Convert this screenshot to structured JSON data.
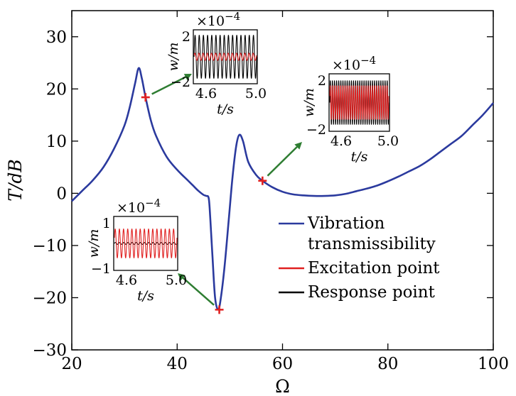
{
  "chart_data": {
    "type": "line",
    "title": "",
    "xlabel": "Ω",
    "ylabel": "T/dB",
    "xlim": [
      20,
      100
    ],
    "ylim": [
      -30,
      35
    ],
    "xticks": [
      20,
      40,
      60,
      80,
      100
    ],
    "yticks": [
      30,
      20,
      10,
      0,
      -10,
      -20,
      -30
    ],
    "xtick_labels": [
      "20",
      "40",
      "60",
      "80",
      "100"
    ],
    "ytick_labels": [
      "30",
      "20",
      "10",
      "0",
      "−10",
      "−20",
      "−30"
    ],
    "grid": false,
    "legend_position": "lower-right",
    "legend": [
      {
        "label_line1": "Vibration",
        "label_line2": "transmissibility",
        "color": "#2b3a9e"
      },
      {
        "label_line1": "Excitation point",
        "label_line2": "",
        "color": "#e02020"
      },
      {
        "label_line1": "Response point",
        "label_line2": "",
        "color": "#000000"
      }
    ],
    "series": [
      {
        "name": "Vibration transmissibility",
        "color": "#2b3a9e",
        "x": [
          20,
          22,
          24,
          26,
          28,
          30,
          31,
          32,
          32.7,
          33.3,
          34,
          35,
          36,
          38,
          40,
          42,
          43,
          44,
          45,
          45.5,
          46,
          46.3,
          46.7,
          47.2,
          47.8,
          48.3,
          49,
          49.8,
          50.5,
          51.2,
          51.8,
          52.5,
          53.5,
          55,
          56.2,
          58,
          60,
          62,
          64,
          66,
          68,
          70,
          72,
          74,
          76,
          78,
          80,
          82,
          84,
          86,
          88,
          90,
          92,
          94,
          96,
          98,
          100
        ],
        "y": [
          -1.5,
          0.5,
          2.5,
          5,
          8.5,
          13,
          16.5,
          21,
          24,
          22,
          18.4,
          14,
          11,
          7,
          4.5,
          2.5,
          1.5,
          0.5,
          -0.3,
          -0.5,
          -1,
          -5,
          -12,
          -20,
          -22.3,
          -20,
          -14,
          -5,
          3,
          9,
          11.2,
          10,
          6,
          3.5,
          2.4,
          1.2,
          0.3,
          -0.2,
          -0.4,
          -0.5,
          -0.5,
          -0.4,
          -0.1,
          0.4,
          0.9,
          1.5,
          2.3,
          3.2,
          4.2,
          5.2,
          6.5,
          8,
          9.5,
          11,
          13,
          15,
          17.3
        ]
      }
    ],
    "markers": [
      {
        "x": 34,
        "y": 18.4
      },
      {
        "x": 48,
        "y": -22.3
      },
      {
        "x": 56.2,
        "y": 2.4
      }
    ],
    "insets": [
      {
        "name": "inset-peak",
        "marker_index": 0,
        "exponent_label": "×10",
        "exponent_power": "−4",
        "ylabel": "w/m",
        "xlabel": "t/s",
        "yticks": [
          "2",
          "−2"
        ],
        "xticks": [
          "4.6",
          "5.0"
        ],
        "y_range": [
          -2,
          2
        ],
        "t_range": [
          4.5,
          5.0
        ],
        "response": {
          "amplitude": 1.8,
          "cycles": 15
        },
        "excitation": {
          "amplitude": 0.3,
          "cycles": 15
        }
      },
      {
        "name": "inset-valley",
        "marker_index": 1,
        "exponent_label": "×10",
        "exponent_power": "−4",
        "ylabel": "w/m",
        "xlabel": "t/s",
        "yticks": [
          "1",
          "−1"
        ],
        "xticks": [
          "4.6",
          "5.0"
        ],
        "y_range": [
          -1,
          1
        ],
        "t_range": [
          4.5,
          5.0
        ],
        "response": {
          "amplitude": 0.04,
          "cycles": 15
        },
        "excitation": {
          "amplitude": 0.6,
          "cycles": 15
        }
      },
      {
        "name": "inset-right",
        "marker_index": 2,
        "exponent_label": "×10",
        "exponent_power": "−4",
        "ylabel": "w/m",
        "xlabel": "t/s",
        "yticks": [
          "2",
          "−2"
        ],
        "xticks": [
          "4.6",
          "5.0"
        ],
        "y_range": [
          -2,
          2
        ],
        "t_range": [
          4.5,
          5.0
        ],
        "response": {
          "amplitude": 1.7,
          "cycles": 28
        },
        "excitation": {
          "amplitude": 1.3,
          "cycles": 28
        }
      }
    ]
  }
}
